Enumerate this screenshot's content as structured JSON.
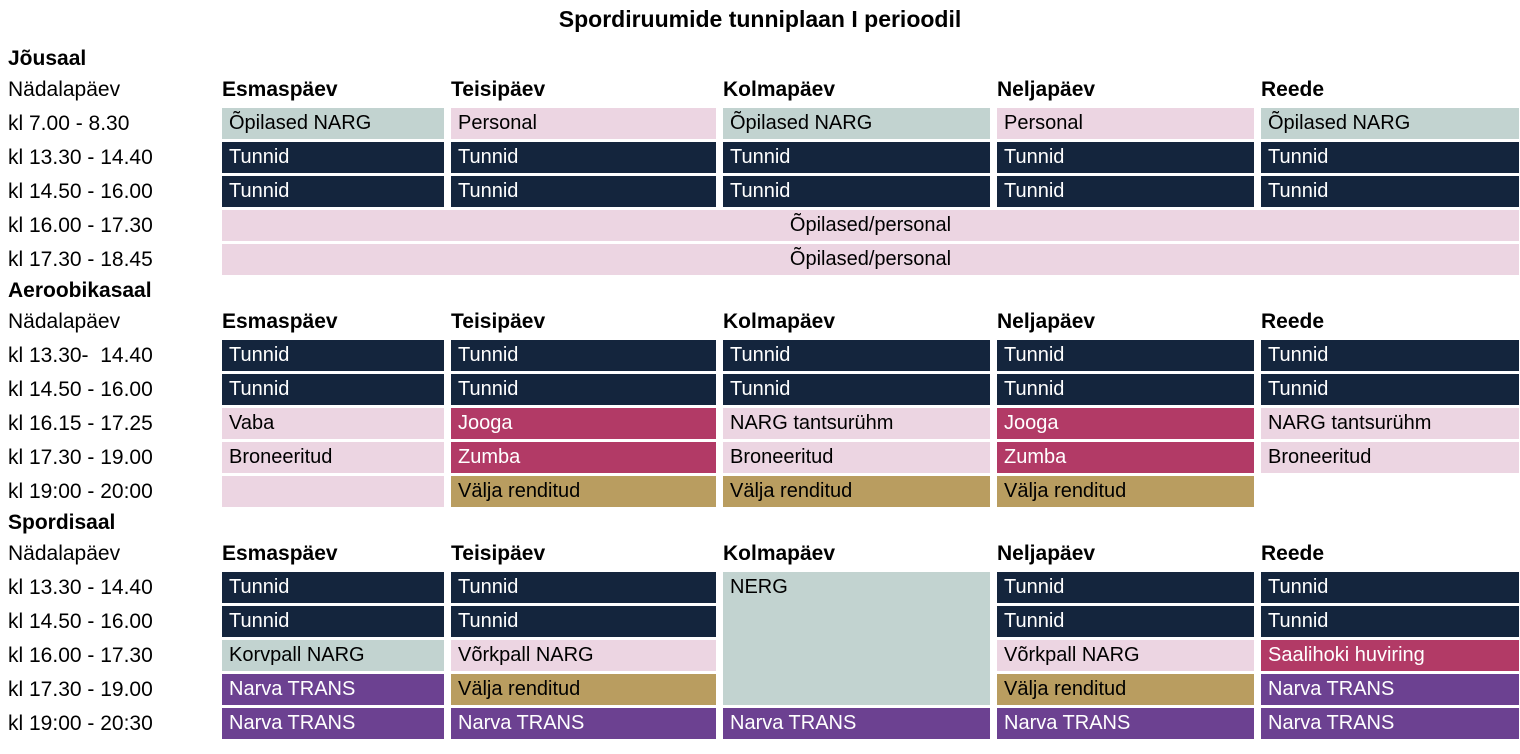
{
  "title": "Spordiruumide tunniplaan I perioodil",
  "colors": {
    "navy": "#14253d",
    "pink": "#ecd5e2",
    "teal": "#c2d3d0",
    "crimson": "#b23a66",
    "gold": "#b99d60",
    "purple": "#6c4191"
  },
  "day_header_label": "Nädalapäev",
  "days": [
    "Esmaspäev",
    "Teisipäev",
    "Kolmapäev",
    "Neljapäev",
    "Reede"
  ],
  "sections": [
    {
      "name": "Jõusaal",
      "rows": [
        {
          "time": "kl 7.00 - 8.30",
          "cells": [
            {
              "label": "Õpilased NARG",
              "color": "teal"
            },
            {
              "label": "Personal",
              "color": "pink"
            },
            {
              "label": "Õpilased NARG",
              "color": "teal"
            },
            {
              "label": "Personal",
              "color": "pink"
            },
            {
              "label": "Õpilased NARG",
              "color": "teal"
            }
          ]
        },
        {
          "time": "kl 13.30 - 14.40",
          "cells": [
            {
              "label": "Tunnid",
              "color": "navy"
            },
            {
              "label": "Tunnid",
              "color": "navy"
            },
            {
              "label": "Tunnid",
              "color": "navy"
            },
            {
              "label": "Tunnid",
              "color": "navy"
            },
            {
              "label": "Tunnid",
              "color": "navy"
            }
          ]
        },
        {
          "time": "kl 14.50 - 16.00",
          "cells": [
            {
              "label": "Tunnid",
              "color": "navy"
            },
            {
              "label": "Tunnid",
              "color": "navy"
            },
            {
              "label": "Tunnid",
              "color": "navy"
            },
            {
              "label": "Tunnid",
              "color": "navy"
            },
            {
              "label": "Tunnid",
              "color": "navy"
            }
          ]
        },
        {
          "time": "kl 16.00 - 17.30",
          "cells": [
            {
              "label": "Õpilased/personal",
              "color": "pink",
              "span": "all-days"
            }
          ]
        },
        {
          "time": "kl 17.30 - 18.45",
          "cells": [
            {
              "label": "Õpilased/personal",
              "color": "pink",
              "span": "all-days"
            }
          ]
        }
      ]
    },
    {
      "name": "Aeroobikasaal",
      "rows": [
        {
          "time": "kl 13.30-  14.40",
          "cells": [
            {
              "label": "Tunnid",
              "color": "navy"
            },
            {
              "label": "Tunnid",
              "color": "navy"
            },
            {
              "label": "Tunnid",
              "color": "navy"
            },
            {
              "label": "Tunnid",
              "color": "navy"
            },
            {
              "label": "Tunnid",
              "color": "navy"
            }
          ]
        },
        {
          "time": "kl 14.50 - 16.00",
          "cells": [
            {
              "label": "Tunnid",
              "color": "navy"
            },
            {
              "label": "Tunnid",
              "color": "navy"
            },
            {
              "label": "Tunnid",
              "color": "navy"
            },
            {
              "label": "Tunnid",
              "color": "navy"
            },
            {
              "label": "Tunnid",
              "color": "navy"
            }
          ]
        },
        {
          "time": "kl 16.15 - 17.25",
          "cells": [
            {
              "label": "Vaba",
              "color": "pink"
            },
            {
              "label": "Jooga",
              "color": "crimson"
            },
            {
              "label": "NARG tantsurühm",
              "color": "pink"
            },
            {
              "label": "Jooga",
              "color": "crimson"
            },
            {
              "label": "NARG tantsurühm",
              "color": "pink"
            }
          ]
        },
        {
          "time": "kl 17.30 - 19.00",
          "cells": [
            {
              "label": "Broneeritud",
              "color": "pink"
            },
            {
              "label": "Zumba",
              "color": "crimson"
            },
            {
              "label": "Broneeritud",
              "color": "pink"
            },
            {
              "label": "Zumba",
              "color": "crimson"
            },
            {
              "label": "Broneeritud",
              "color": "pink"
            }
          ]
        },
        {
          "time": "kl 19:00 - 20:00",
          "cells": [
            {
              "label": "",
              "color": "pink"
            },
            {
              "label": "Välja renditud",
              "color": "gold"
            },
            {
              "label": "Välja renditud",
              "color": "gold"
            },
            {
              "label": "Välja renditud",
              "color": "gold"
            }
          ]
        }
      ]
    },
    {
      "name": "Spordisaal",
      "rows": [
        {
          "time": "kl 13.30 - 14.40",
          "cells": [
            {
              "label": "Tunnid",
              "color": "navy"
            },
            {
              "label": "Tunnid",
              "color": "navy"
            },
            {
              "label": "NERG",
              "color": "teal",
              "rowspan": 4
            },
            {
              "label": "Tunnid",
              "color": "navy"
            },
            {
              "label": "Tunnid",
              "color": "navy"
            }
          ]
        },
        {
          "time": "kl 14.50 - 16.00",
          "cells": [
            {
              "label": "Tunnid",
              "color": "navy"
            },
            {
              "label": "Tunnid",
              "color": "navy"
            },
            {
              "label": "Tunnid",
              "color": "navy"
            },
            {
              "label": "Tunnid",
              "color": "navy"
            }
          ]
        },
        {
          "time": "kl 16.00 - 17.30",
          "cells": [
            {
              "label": "Korvpall NARG",
              "color": "teal"
            },
            {
              "label": "Võrkpall NARG",
              "color": "pink"
            },
            {
              "label": "Võrkpall NARG",
              "color": "pink"
            },
            {
              "label": "Saalihoki huviring",
              "color": "crimson"
            }
          ]
        },
        {
          "time": "kl 17.30 - 19.00",
          "cells": [
            {
              "label": "Narva TRANS",
              "color": "purple"
            },
            {
              "label": "Välja renditud",
              "color": "gold"
            },
            {
              "label": "Välja renditud",
              "color": "gold"
            },
            {
              "label": "Narva TRANS",
              "color": "purple"
            }
          ]
        },
        {
          "time": "kl 19:00 - 20:30",
          "cells": [
            {
              "label": "Narva TRANS",
              "color": "purple"
            },
            {
              "label": "Narva TRANS",
              "color": "purple"
            },
            {
              "label": "Narva TRANS",
              "color": "purple"
            },
            {
              "label": "Narva TRANS",
              "color": "purple"
            },
            {
              "label": "Narva TRANS",
              "color": "purple"
            }
          ]
        }
      ]
    }
  ]
}
